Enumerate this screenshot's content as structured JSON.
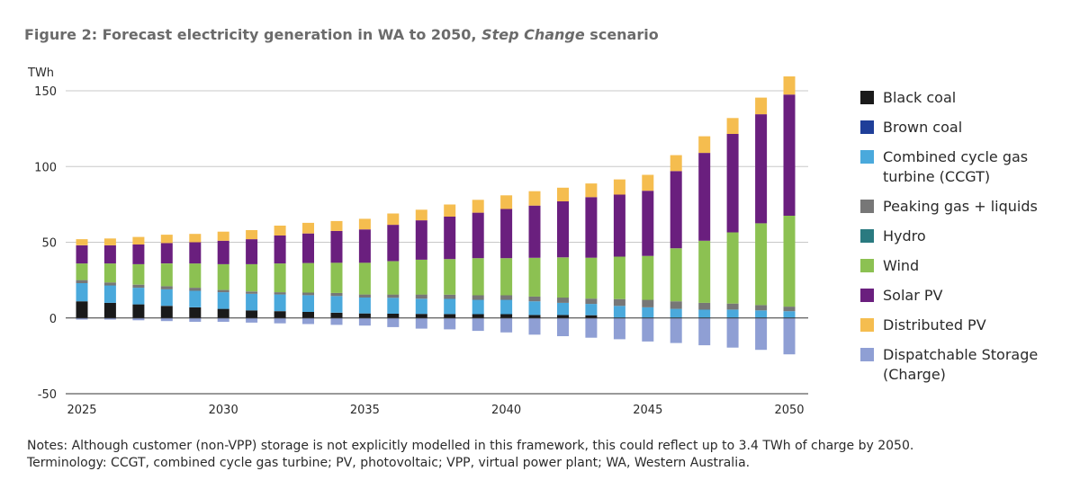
{
  "title": {
    "prefix": "Figure 2: Forecast electricity generation in WA to 2050, ",
    "italic": "Step Change",
    "suffix": " scenario"
  },
  "notes": [
    "Notes: Although customer (non-VPP) storage is not explicitly modelled in this framework, this could reflect up to 3.4 TWh of charge by 2050.",
    "Terminology: CCGT, combined cycle gas turbine; PV, photovoltaic; VPP, virtual power plant; WA, Western Australia."
  ],
  "chart_data": {
    "type": "bar",
    "stacked": true,
    "ylabel": "TWh",
    "ylim": [
      -50,
      150
    ],
    "yticks": [
      -50,
      0,
      50,
      100,
      150
    ],
    "grid": true,
    "legend_position": "right",
    "xtick_labels": [
      "2025",
      "2030",
      "2035",
      "2040",
      "2045",
      "2050"
    ],
    "categories": [
      "2025",
      "2026",
      "2027",
      "2028",
      "2029",
      "2030",
      "2031",
      "2032",
      "2033",
      "2034",
      "2035",
      "2036",
      "2037",
      "2038",
      "2039",
      "2040",
      "2041",
      "2042",
      "2043",
      "2044",
      "2045",
      "2046",
      "2047",
      "2048",
      "2049",
      "2050"
    ],
    "series": [
      {
        "name": "Black coal",
        "color": "#1a1a1a",
        "values": [
          11,
          10,
          9,
          8,
          7,
          6,
          5,
          4.5,
          4,
          3.5,
          3,
          2.8,
          2.7,
          2.6,
          2.5,
          2.5,
          2,
          2,
          1.8,
          0,
          0,
          0,
          0,
          0,
          0,
          0
        ]
      },
      {
        "name": "Brown coal",
        "color": "#1f3f99",
        "values": [
          0,
          0,
          0,
          0,
          0,
          0,
          0,
          0,
          0,
          0,
          0,
          0,
          0,
          0,
          0,
          0,
          0,
          0,
          0,
          0,
          0,
          0,
          0,
          0,
          0,
          0
        ]
      },
      {
        "name": "Combined cycle gas turbine (CCGT)",
        "color": "#4aa9dc",
        "values": [
          12,
          11.5,
          11,
          11,
          11,
          11,
          11,
          11,
          11,
          11,
          10.5,
          10.5,
          10,
          10,
          9.5,
          9.5,
          9,
          8,
          7.5,
          8,
          7,
          6,
          5.5,
          5.5,
          5,
          4.5
        ]
      },
      {
        "name": "Peaking gas + liquids",
        "color": "#777777",
        "values": [
          2,
          2,
          2,
          2,
          2,
          1.5,
          1.5,
          1.5,
          1.8,
          2,
          2,
          2.2,
          2.8,
          2.8,
          3,
          3,
          3.2,
          3.5,
          3.5,
          4.5,
          5,
          5,
          4.5,
          4,
          3.5,
          3
        ]
      },
      {
        "name": "Hydro",
        "color": "#2a7a80",
        "values": [
          0,
          0,
          0,
          0,
          0,
          0,
          0,
          0,
          0,
          0,
          0,
          0,
          0,
          0,
          0,
          0,
          0,
          0,
          0,
          0,
          0,
          0,
          0,
          0,
          0,
          0
        ]
      },
      {
        "name": "Wind",
        "color": "#8cc152",
        "values": [
          11,
          12.5,
          13.5,
          15,
          16,
          17,
          18,
          19,
          19.5,
          20,
          21,
          22,
          23,
          23.5,
          24.5,
          24.5,
          25.5,
          26.5,
          27,
          28,
          29,
          35,
          41,
          47,
          54,
          60
        ]
      },
      {
        "name": "Solar PV",
        "color": "#6a1f7e",
        "values": [
          12,
          12,
          13,
          13.5,
          14,
          15.5,
          16.5,
          18.5,
          19.5,
          21,
          22,
          24,
          26,
          28,
          30,
          32.5,
          34.5,
          37,
          40,
          41,
          43,
          51,
          58,
          65,
          72,
          80
        ]
      },
      {
        "name": "Distributed PV",
        "color": "#f5bd4f",
        "values": [
          4,
          4.5,
          5,
          5.5,
          5.5,
          6,
          6,
          6.5,
          7,
          6.5,
          7,
          7.5,
          7,
          8,
          8.5,
          9,
          9.5,
          9,
          9,
          10,
          10.5,
          10.5,
          11,
          10.5,
          11,
          12
        ]
      },
      {
        "name": "Dispatchable Storage (Charge)",
        "color": "#8f9fd4",
        "values": [
          -1,
          -1,
          -1.5,
          -2,
          -2.5,
          -2.5,
          -3,
          -3.5,
          -4,
          -4.5,
          -5,
          -6,
          -7,
          -7.5,
          -8.5,
          -9.5,
          -11,
          -12,
          -13,
          -14,
          -15.5,
          -16.5,
          -18,
          -19.5,
          -21,
          -24
        ]
      }
    ]
  },
  "legend": [
    {
      "label": "Black coal",
      "color": "#1a1a1a"
    },
    {
      "label": "Brown coal",
      "color": "#1f3f99"
    },
    {
      "label": "Combined cycle gas turbine (CCGT)",
      "color": "#4aa9dc"
    },
    {
      "label": "Peaking gas + liquids",
      "color": "#777777"
    },
    {
      "label": "Hydro",
      "color": "#2a7a80"
    },
    {
      "label": "Wind",
      "color": "#8cc152"
    },
    {
      "label": "Solar PV",
      "color": "#6a1f7e"
    },
    {
      "label": "Distributed PV",
      "color": "#f5bd4f"
    },
    {
      "label": "Dispatchable Storage (Charge)",
      "color": "#8f9fd4"
    }
  ]
}
